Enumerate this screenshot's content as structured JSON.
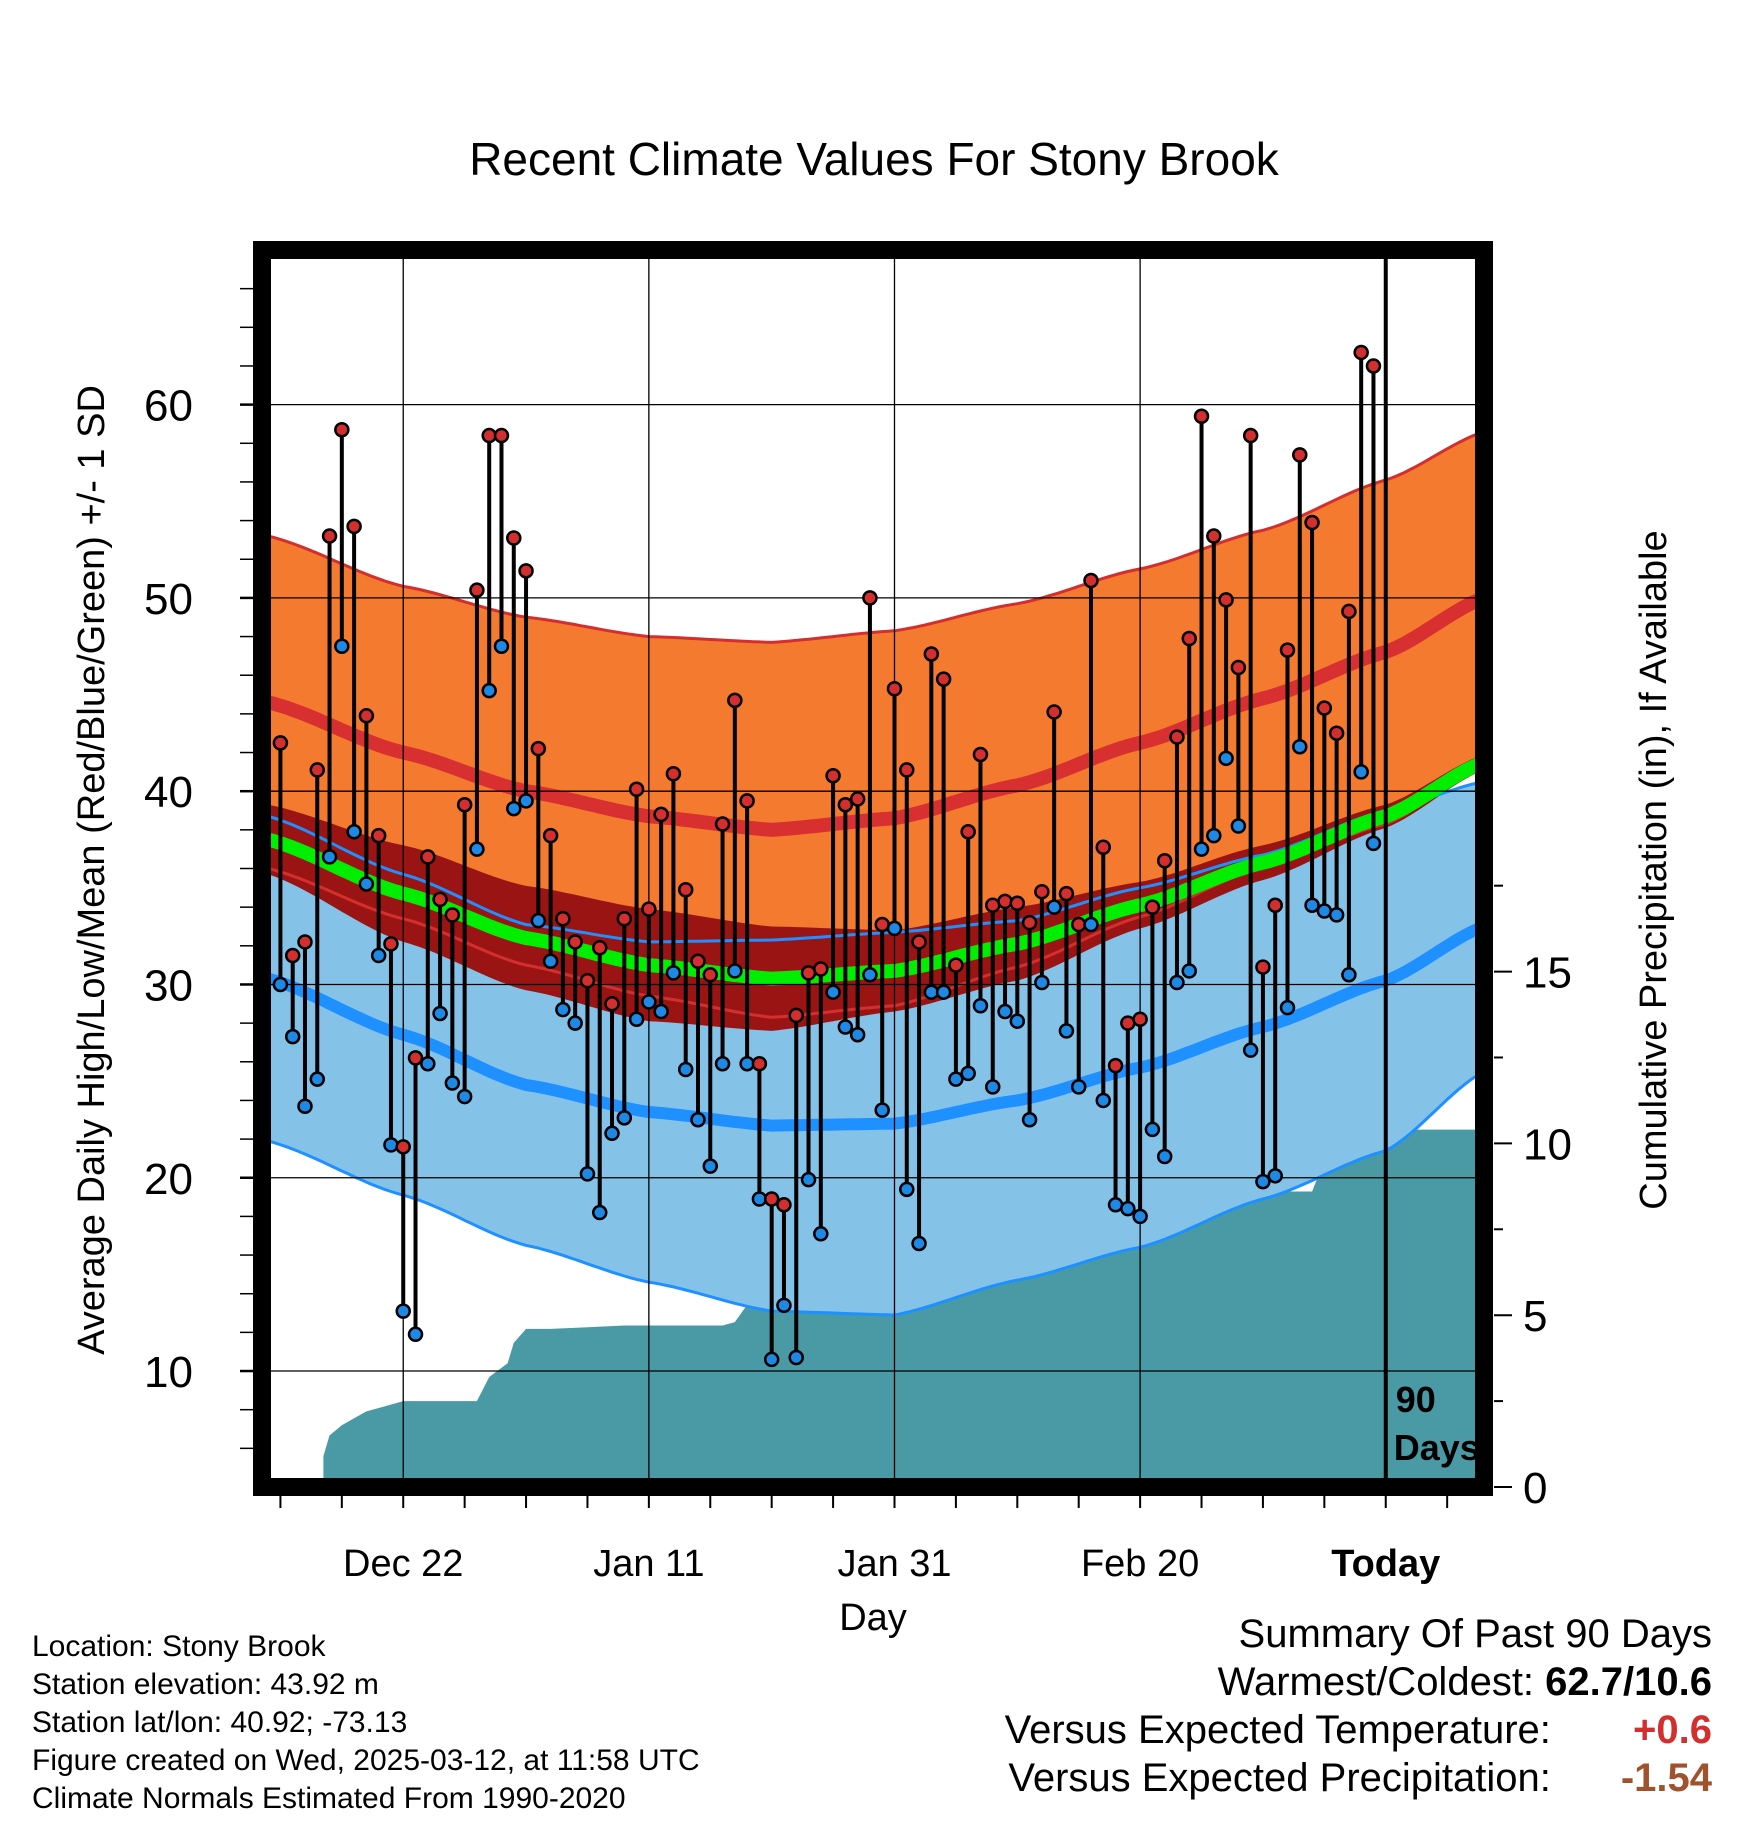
{
  "chart_data": {
    "type": "line",
    "title": "Recent Climate Values For Stony Brook",
    "xlabel": "Day",
    "ylabel": "Average Daily High/Low/Mean (Red/Blue/Green) +/- 1 SD",
    "y2label": "Cumulative Precipitation (in), If Available",
    "ylim": [
      4,
      68
    ],
    "y2lim": [
      0,
      36
    ],
    "y_ticks": [
      "10",
      "20",
      "30",
      "40",
      "50",
      "60"
    ],
    "y2_ticks": [
      "0",
      "5",
      "10",
      "15"
    ],
    "x_ticks": [
      "Dec 22",
      "Jan 11",
      "Jan 31",
      "Feb 20",
      "Today"
    ],
    "x_tick_days": [
      10,
      30,
      50,
      70,
      90
    ],
    "xlim": [
      -1.5,
      98
    ],
    "today_marker": {
      "day": 90,
      "label_line1": "90",
      "label_line2": "Days"
    },
    "grid": true,
    "colors": {
      "high_band": "#f47a30",
      "high_edge": "#d32f2f",
      "high_mean": "#d83030",
      "low_band": "#85c2e8",
      "low_edge": "#1e90ff",
      "low_mean": "#1e90ff",
      "mean_band": "#9b1414",
      "mean_line": "#00ee00",
      "precip": "#4a9aa5",
      "daily_high": "#d32f2f",
      "daily_low": "#1e88e5"
    },
    "normals": {
      "days": [
        -1,
        10,
        20,
        30,
        40,
        50,
        60,
        70,
        80,
        90,
        98
      ],
      "high_mean": [
        44.6,
        42.0,
        40.0,
        38.7,
        38.0,
        38.6,
        40.3,
        42.5,
        44.8,
        47.2,
        50.0
      ],
      "high_sd": [
        8.6,
        8.6,
        9.0,
        9.3,
        9.7,
        9.7,
        9.4,
        9.0,
        8.7,
        8.9,
        8.6
      ],
      "low_mean": [
        30.3,
        27.4,
        24.8,
        23.4,
        22.7,
        22.8,
        24.0,
        25.7,
        27.8,
        30.2,
        33.0
      ],
      "low_sd": [
        8.4,
        8.3,
        8.3,
        8.8,
        9.6,
        9.9,
        9.3,
        9.3,
        8.9,
        8.8,
        7.5
      ],
      "mean_mean": [
        37.5,
        34.7,
        32.4,
        31.0,
        30.3,
        30.7,
        32.1,
        34.1,
        36.3,
        38.7,
        41.5
      ],
      "mean_sd": [
        1.8,
        2.5,
        2.7,
        2.9,
        2.7,
        2.1,
        1.9,
        1.2,
        0.9,
        0.6,
        0.4
      ]
    },
    "daily_high": [
      42.5,
      31.5,
      32.2,
      41.1,
      53.2,
      58.7,
      53.7,
      43.9,
      37.7,
      32.1,
      21.6,
      26.2,
      36.6,
      34.4,
      33.6,
      39.3,
      50.4,
      58.4,
      58.4,
      53.1,
      51.4,
      42.2,
      37.7,
      33.4,
      32.2,
      30.2,
      31.9,
      29.0,
      33.4,
      40.1,
      33.9,
      38.8,
      40.9,
      34.9,
      31.2,
      30.5,
      38.3,
      44.7,
      39.5,
      25.9,
      18.9,
      18.6,
      28.4,
      30.6,
      30.8,
      40.8,
      39.3,
      39.6,
      50.0,
      33.1,
      45.3,
      41.1,
      32.2,
      47.1,
      45.8,
      31.0,
      37.9,
      41.9,
      34.1,
      34.3,
      34.2,
      33.2,
      34.8,
      44.1,
      34.7,
      33.1,
      50.9,
      37.1,
      25.8,
      28.0,
      28.2,
      34.0,
      36.4,
      42.8,
      47.9,
      59.4,
      53.2,
      49.9,
      46.4,
      58.4,
      30.9,
      34.1,
      47.3,
      57.4,
      53.9,
      44.3,
      43.0,
      49.3,
      62.7,
      62.0
    ],
    "daily_low": [
      30.0,
      27.3,
      23.7,
      25.1,
      36.6,
      47.5,
      37.9,
      35.2,
      31.5,
      21.7,
      13.1,
      11.9,
      25.9,
      28.5,
      24.9,
      24.2,
      37.0,
      45.2,
      47.5,
      39.1,
      39.5,
      33.3,
      31.2,
      28.7,
      28.0,
      20.2,
      18.2,
      22.3,
      23.1,
      28.2,
      29.1,
      28.6,
      30.6,
      25.6,
      23.0,
      20.6,
      25.9,
      30.7,
      25.9,
      18.9,
      10.6,
      13.4,
      10.7,
      19.9,
      17.1,
      29.6,
      27.8,
      27.4,
      30.5,
      23.5,
      32.9,
      19.4,
      16.6,
      29.6,
      29.6,
      25.1,
      25.4,
      28.9,
      24.7,
      28.6,
      28.1,
      23.0,
      30.1,
      34.0,
      27.6,
      24.7,
      33.1,
      24.0,
      18.6,
      18.4,
      18.0,
      22.5,
      21.1,
      30.1,
      30.7,
      37.0,
      37.7,
      41.7,
      38.2,
      26.6,
      19.8,
      20.1,
      28.8,
      42.3,
      34.1,
      33.8,
      33.6,
      30.5,
      41.0,
      37.3
    ],
    "precipitation_cumulative": {
      "days": [
        3.5,
        4.0,
        5.0,
        6.0,
        7.0,
        8.0,
        10.0,
        12.0,
        14.0,
        16.0,
        17.0,
        18.5,
        19.0,
        20.0,
        22.0,
        25.0,
        28.0,
        31.0,
        34.0,
        36.0,
        37.0,
        38.0,
        40.0,
        45.0,
        47.0,
        48.0,
        49.0,
        50.0,
        52.0,
        53.0,
        55.0,
        56.0,
        57.0,
        58.0,
        59.0,
        60.0,
        61.0,
        62.0,
        63.0,
        64.0,
        65.0,
        66.0,
        67.0,
        68.0,
        70.0,
        74.0,
        78.0,
        80.0,
        81.0,
        82.0,
        83.0,
        84.0,
        86.0,
        88.0,
        90.0,
        91.0,
        95.0,
        98.0
      ],
      "values": [
        0.9,
        1.5,
        1.8,
        2.0,
        2.2,
        2.3,
        2.5,
        2.5,
        2.5,
        2.5,
        3.2,
        3.6,
        4.2,
        4.6,
        4.6,
        4.65,
        4.7,
        4.7,
        4.7,
        4.7,
        4.8,
        5.3,
        5.3,
        5.3,
        5.3,
        5.3,
        5.3,
        5.4,
        5.6,
        5.8,
        5.8,
        6.0,
        6.3,
        6.3,
        6.8,
        7.0,
        7.0,
        7.2,
        7.3,
        7.5,
        7.5,
        8.0,
        8.4,
        8.5,
        8.5,
        8.5,
        8.5,
        8.6,
        8.6,
        8.6,
        8.6,
        8.6,
        10.4,
        10.4,
        10.4,
        10.4,
        10.4,
        10.4
      ]
    }
  },
  "info": {
    "location": "Location: Stony Brook",
    "elevation": "Station elevation: 43.92 m",
    "latlon": "Station lat/lon: 40.92; -73.13",
    "created": "Figure created on Wed, 2025-03-12, at 11:58 UTC",
    "normals": "Climate Normals Estimated From 1990-2020"
  },
  "summary": {
    "heading": "Summary Of Past 90 Days",
    "warm_cold_label": "Warmest/Coldest:",
    "warm_cold_value": "62.7/10.6",
    "temp_label": "Versus Expected Temperature:",
    "temp_value": "+0.6",
    "precip_label": "Versus Expected Precipitation:",
    "precip_value": "-1.54"
  }
}
